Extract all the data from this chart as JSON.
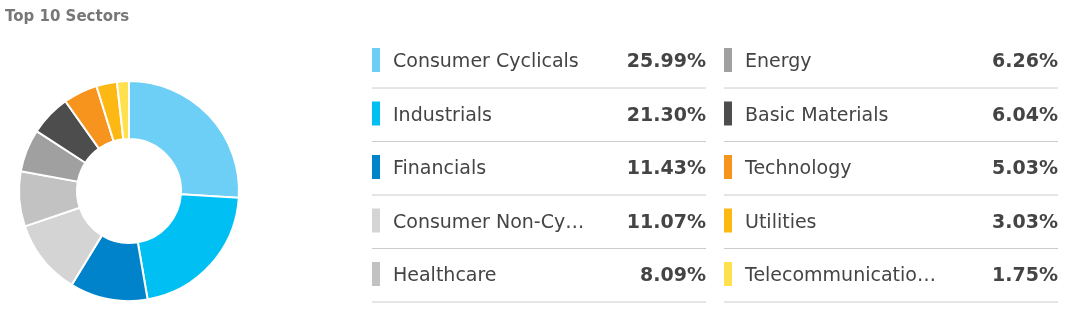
{
  "chart_data": {
    "type": "donut",
    "title": "Top 10 Sectors",
    "categories": [
      "Consumer Cyclicals",
      "Industrials",
      "Financials",
      "Consumer Non-Cy…",
      "Healthcare",
      "Energy",
      "Basic Materials",
      "Technology",
      "Utilities",
      "Telecommunicatio…"
    ],
    "values": [
      25.99,
      21.3,
      11.43,
      11.07,
      8.09,
      6.26,
      6.04,
      5.03,
      3.03,
      1.75
    ],
    "value_labels": [
      "25.99%",
      "21.30%",
      "11.43%",
      "11.07%",
      "8.09%",
      "6.26%",
      "6.04%",
      "5.03%",
      "3.03%",
      "1.75%"
    ],
    "colors": [
      "#6dcff6",
      "#00bff3",
      "#0083ca",
      "#d4d4d4",
      "#c2c2c2",
      "#a0a0a0",
      "#4d4d4d",
      "#f7941d",
      "#fdb813",
      "#ffe14f"
    ],
    "legend": "right"
  }
}
